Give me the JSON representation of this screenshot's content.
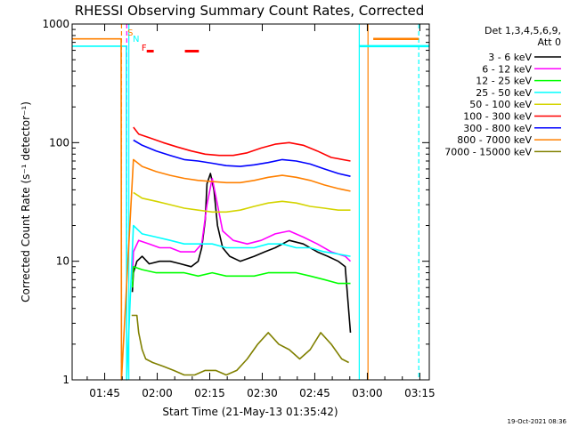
{
  "chart_data": {
    "type": "line",
    "title": "RHESSI Observing Summary Count Rates, Corrected",
    "xlabel": "Start Time (21-May-13 01:35:42)",
    "ylabel": "Corrected Count Rate (s⁻¹ detector⁻¹)",
    "x_unit": "minutes after 01:35:42",
    "xlim": [
      0,
      102
    ],
    "ylim": [
      1,
      1000
    ],
    "yscale": "log",
    "y_ticks": [
      "1",
      "10",
      "100",
      "1000"
    ],
    "x_ticks": [
      {
        "label": "01:45",
        "t": 9.3
      },
      {
        "label": "02:00",
        "t": 24.3
      },
      {
        "label": "02:15",
        "t": 39.3
      },
      {
        "label": "02:30",
        "t": 54.3
      },
      {
        "label": "02:45",
        "t": 69.3
      },
      {
        "label": "03:00",
        "t": 84.3
      },
      {
        "label": "03:15",
        "t": 99.3
      }
    ],
    "legend_header": [
      "Det 1,3,4,5,6,9,",
      "Att 0"
    ],
    "legend_position": "right",
    "series": [
      {
        "name": "3 - 6 keV",
        "color": "#000000",
        "x": [
          17.2,
          17.5,
          18.5,
          20,
          22,
          25,
          28,
          31,
          34,
          36,
          37,
          38,
          38.5,
          39.5,
          40.5,
          41.5,
          43,
          45,
          48,
          52,
          55,
          58,
          62,
          66,
          70,
          73,
          76,
          78,
          79.5
        ],
        "y": [
          5.5,
          8,
          10,
          11,
          9.5,
          10,
          10,
          9.5,
          9,
          10,
          13,
          22,
          45,
          55,
          40,
          20,
          13,
          11,
          10,
          11,
          12,
          13,
          15,
          14,
          12,
          11,
          10,
          9,
          2.5
        ]
      },
      {
        "name": "6 - 12 keV",
        "color": "#ff00ff",
        "x": [
          17.2,
          17.5,
          19,
          22,
          25,
          28,
          31,
          35,
          37,
          38.5,
          40,
          41.5,
          43,
          46,
          50,
          54,
          58,
          62,
          66,
          70,
          74,
          78,
          79.5
        ],
        "y": [
          7,
          12,
          15,
          14,
          13,
          13,
          12,
          12,
          14,
          30,
          50,
          30,
          18,
          15,
          14,
          15,
          17,
          18,
          16,
          14,
          12,
          11,
          10
        ]
      },
      {
        "name": "12 - 25 keV",
        "color": "#00ff00",
        "x": [
          17.2,
          17.5,
          20,
          24,
          28,
          32,
          36,
          40,
          44,
          48,
          52,
          56,
          60,
          64,
          68,
          72,
          76,
          79.5
        ],
        "y": [
          6,
          9,
          8.5,
          8,
          8,
          8,
          7.5,
          8,
          7.5,
          7.5,
          7.5,
          8,
          8,
          8,
          7.5,
          7,
          6.5,
          6.5
        ]
      },
      {
        "name": "25 - 50 keV",
        "color": "#00ffff",
        "x": [
          0,
          15.5,
          15.6,
          17.5,
          20,
          24,
          28,
          32,
          36,
          40,
          44,
          48,
          52,
          56,
          60,
          64,
          68,
          72,
          76,
          79.5
        ],
        "y": [
          650,
          650,
          1,
          20,
          17,
          16,
          15,
          14,
          14,
          14,
          13,
          13,
          13,
          14,
          14,
          13,
          13,
          12,
          11.5,
          11
        ]
      },
      {
        "name": "50 - 100 keV",
        "color": "#d4d400",
        "x": [
          17.5,
          20,
          24,
          28,
          32,
          36,
          40,
          44,
          48,
          52,
          56,
          60,
          64,
          68,
          72,
          76,
          79.5
        ],
        "y": [
          38,
          34,
          32,
          30,
          28,
          27,
          26,
          26,
          27,
          29,
          31,
          32,
          31,
          29,
          28,
          27,
          27
        ]
      },
      {
        "name": "100 - 300 keV",
        "color": "#ff0000",
        "x": [
          17.5,
          19,
          22,
          26,
          30,
          34,
          38,
          42,
          46,
          50,
          54,
          58,
          62,
          66,
          70,
          74,
          79.5
        ],
        "y": [
          135,
          118,
          110,
          100,
          92,
          85,
          80,
          78,
          78,
          82,
          90,
          97,
          100,
          95,
          85,
          75,
          70
        ]
      },
      {
        "name": "300 - 800 keV",
        "color": "#0000ff",
        "x": [
          17.5,
          20,
          24,
          28,
          32,
          36,
          40,
          44,
          48,
          52,
          56,
          60,
          64,
          68,
          72,
          76,
          79.5
        ],
        "y": [
          105,
          95,
          85,
          78,
          72,
          70,
          67,
          64,
          63,
          65,
          68,
          72,
          70,
          66,
          60,
          55,
          52
        ]
      },
      {
        "name": "800 - 7000 keV",
        "color": "#ff8000",
        "x": [
          0,
          14,
          14.1,
          17.5,
          20,
          24,
          28,
          32,
          36,
          40,
          44,
          48,
          52,
          56,
          60,
          64,
          68,
          72,
          76,
          79.5
        ],
        "y": [
          750,
          750,
          1,
          72,
          63,
          57,
          53,
          50,
          48,
          47,
          46,
          46,
          48,
          51,
          53,
          51,
          48,
          44,
          41,
          39
        ]
      },
      {
        "name": "7000 - 15000 keV",
        "color": "#808000",
        "x": [
          17,
          18.5,
          19,
          20,
          21,
          23,
          26,
          29,
          32,
          35,
          38,
          41,
          44,
          47,
          50,
          53,
          56,
          59,
          62,
          65,
          68,
          71,
          74,
          77,
          79
        ],
        "y": [
          3.5,
          3.5,
          2.5,
          1.8,
          1.5,
          1.4,
          1.3,
          1.2,
          1.1,
          1.1,
          1.2,
          1.2,
          1.1,
          1.2,
          1.5,
          2,
          2.5,
          2,
          1.8,
          1.5,
          1.8,
          2.5,
          2,
          1.5,
          1.4
        ]
      }
    ],
    "post_gap_segments": [
      {
        "color": "#00ffff",
        "x": [
          82,
          102
        ],
        "y": [
          650,
          650
        ]
      },
      {
        "color": "#ff8000",
        "x": [
          86,
          99
        ],
        "y": [
          750,
          750
        ]
      }
    ],
    "vertical_markers": [
      {
        "t": 14.1,
        "color": "#ff8000",
        "style": "dashed"
      },
      {
        "t": 15.6,
        "color": "#ff00ff",
        "style": "dashed"
      },
      {
        "t": 16.2,
        "color": "#00ffff",
        "style": "solid"
      },
      {
        "t": 82,
        "color": "#00ffff",
        "style": "solid"
      },
      {
        "t": 84.5,
        "color": "#ff8000",
        "style": "solid"
      },
      {
        "t": 99,
        "color": "#00ffff",
        "style": "dashed"
      }
    ],
    "flag_labels": [
      {
        "text": "S",
        "color": "#ff8000",
        "t": 15.8
      },
      {
        "text": "N",
        "color": "#00ffff",
        "t": 17.3
      },
      {
        "text": "F",
        "color": "#ff0000",
        "t": 19.8
      }
    ],
    "flag_bars": [
      {
        "color": "#ff0000",
        "t0": 21.3,
        "t1": 23.3
      },
      {
        "color": "#ff0000",
        "t0": 32.2,
        "t1": 36.2
      }
    ],
    "footer": "19-Oct-2021 08:36"
  }
}
